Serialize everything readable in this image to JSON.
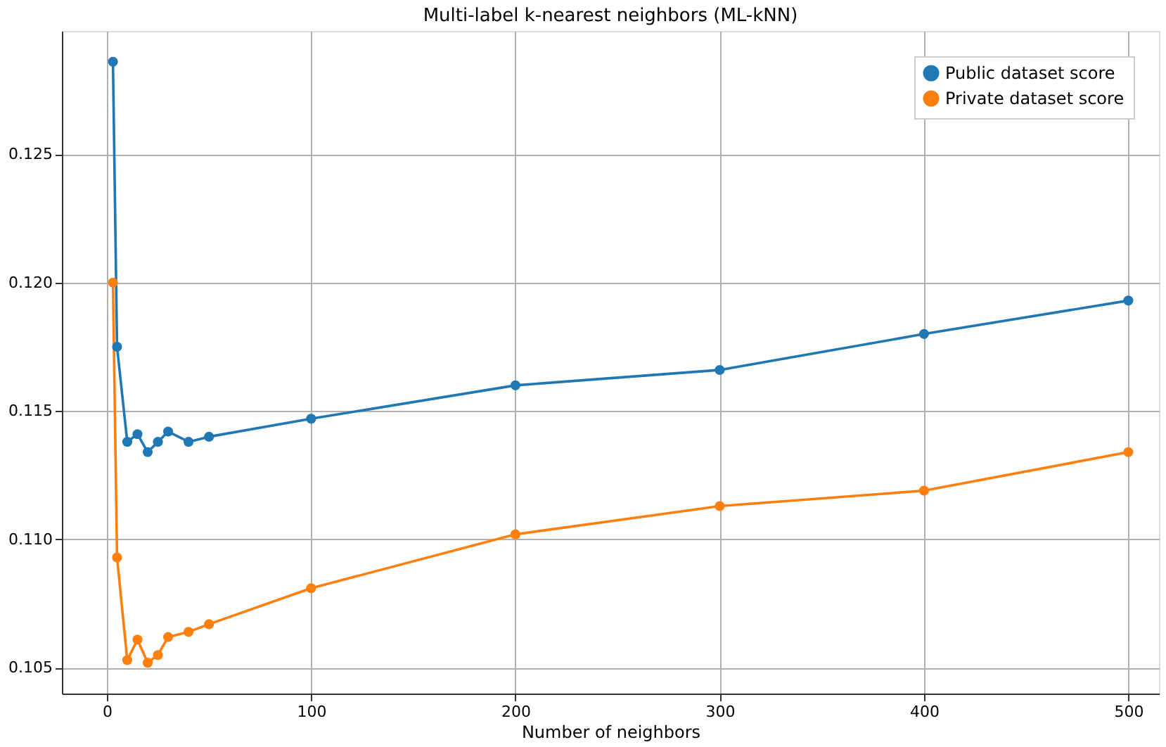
{
  "chart_data": {
    "type": "line",
    "title": "Multi-label k-nearest neighbors (ML-kNN)",
    "xlabel": "Number of neighbors",
    "x": [
      3,
      5,
      10,
      15,
      20,
      25,
      30,
      40,
      50,
      100,
      200,
      300,
      400,
      500
    ],
    "series": [
      {
        "name": "Public dataset score",
        "color": "#1f77b4",
        "values": [
          0.1286,
          0.1175,
          0.1138,
          0.1141,
          0.1134,
          0.1138,
          0.1142,
          0.1138,
          0.114,
          0.1147,
          0.116,
          0.1166,
          0.118,
          0.1193
        ]
      },
      {
        "name": "Private dataset score",
        "color": "#ff7f0e",
        "values": [
          0.12,
          0.1093,
          0.1053,
          0.1061,
          0.1052,
          0.1055,
          0.1062,
          0.1064,
          0.1067,
          0.1081,
          0.1102,
          0.1113,
          0.1119,
          0.1134
        ]
      }
    ],
    "xlim": [
      -22,
      515
    ],
    "xticks": [
      0,
      100,
      200,
      300,
      400,
      500
    ],
    "ylim": [
      0.104,
      0.1298
    ],
    "yticks": [
      0.105,
      {
        "value": 0.11,
        "label": "0.110"
      },
      0.115,
      {
        "value": 0.12,
        "label": "0.120"
      },
      0.125
    ],
    "grid": true,
    "legend": "top right",
    "marker": "circle",
    "line_style": "solid"
  }
}
